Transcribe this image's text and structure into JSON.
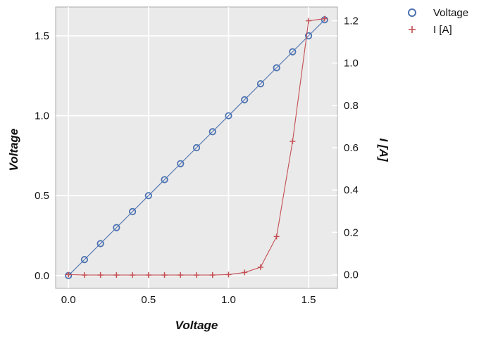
{
  "chart_data": {
    "type": "line",
    "title": "",
    "xlabel": "Voltage",
    "ylabel": "Voltage",
    "y2label": "I [A]",
    "xlim": [
      -0.08,
      1.68
    ],
    "ylim": [
      -0.08,
      1.68
    ],
    "y2lim": [
      -0.065,
      1.265
    ],
    "x_ticks": [
      0.0,
      0.5,
      1.0,
      1.5
    ],
    "x_tick_labels": [
      "0.0",
      "0.5",
      "1.0",
      "1.5"
    ],
    "y_ticks": [
      0.0,
      0.5,
      1.0,
      1.5
    ],
    "y_tick_labels": [
      "0.0",
      "0.5",
      "1.0",
      "1.5"
    ],
    "y2_ticks": [
      0.0,
      0.2,
      0.4,
      0.6,
      0.8,
      1.0,
      1.2
    ],
    "y2_tick_labels": [
      "0.0",
      "0.2",
      "0.4",
      "0.6",
      "0.8",
      "1.0",
      "1.2"
    ],
    "grid": true,
    "legend_position": "outside-top-right",
    "x": [
      0.0,
      0.1,
      0.2,
      0.3,
      0.4,
      0.5,
      0.6,
      0.7,
      0.8,
      0.9,
      1.0,
      1.1,
      1.2,
      1.3,
      1.4,
      1.5,
      1.6
    ],
    "series": [
      {
        "name": "Voltage",
        "axis": "left",
        "marker": "circle",
        "color": "#4c72b0",
        "values": [
          0.0,
          0.1,
          0.2,
          0.3,
          0.4,
          0.5,
          0.6,
          0.7,
          0.8,
          0.9,
          1.0,
          1.1,
          1.2,
          1.3,
          1.4,
          1.5,
          1.6
        ]
      },
      {
        "name": "I [A]",
        "axis": "right",
        "marker": "plus",
        "color": "#c44e52",
        "values": [
          0.0,
          -0.002,
          -0.002,
          -0.002,
          -0.002,
          -0.002,
          -0.002,
          -0.002,
          -0.002,
          -0.002,
          0.0,
          0.01,
          0.035,
          0.18,
          0.63,
          1.2,
          1.21
        ]
      }
    ]
  }
}
